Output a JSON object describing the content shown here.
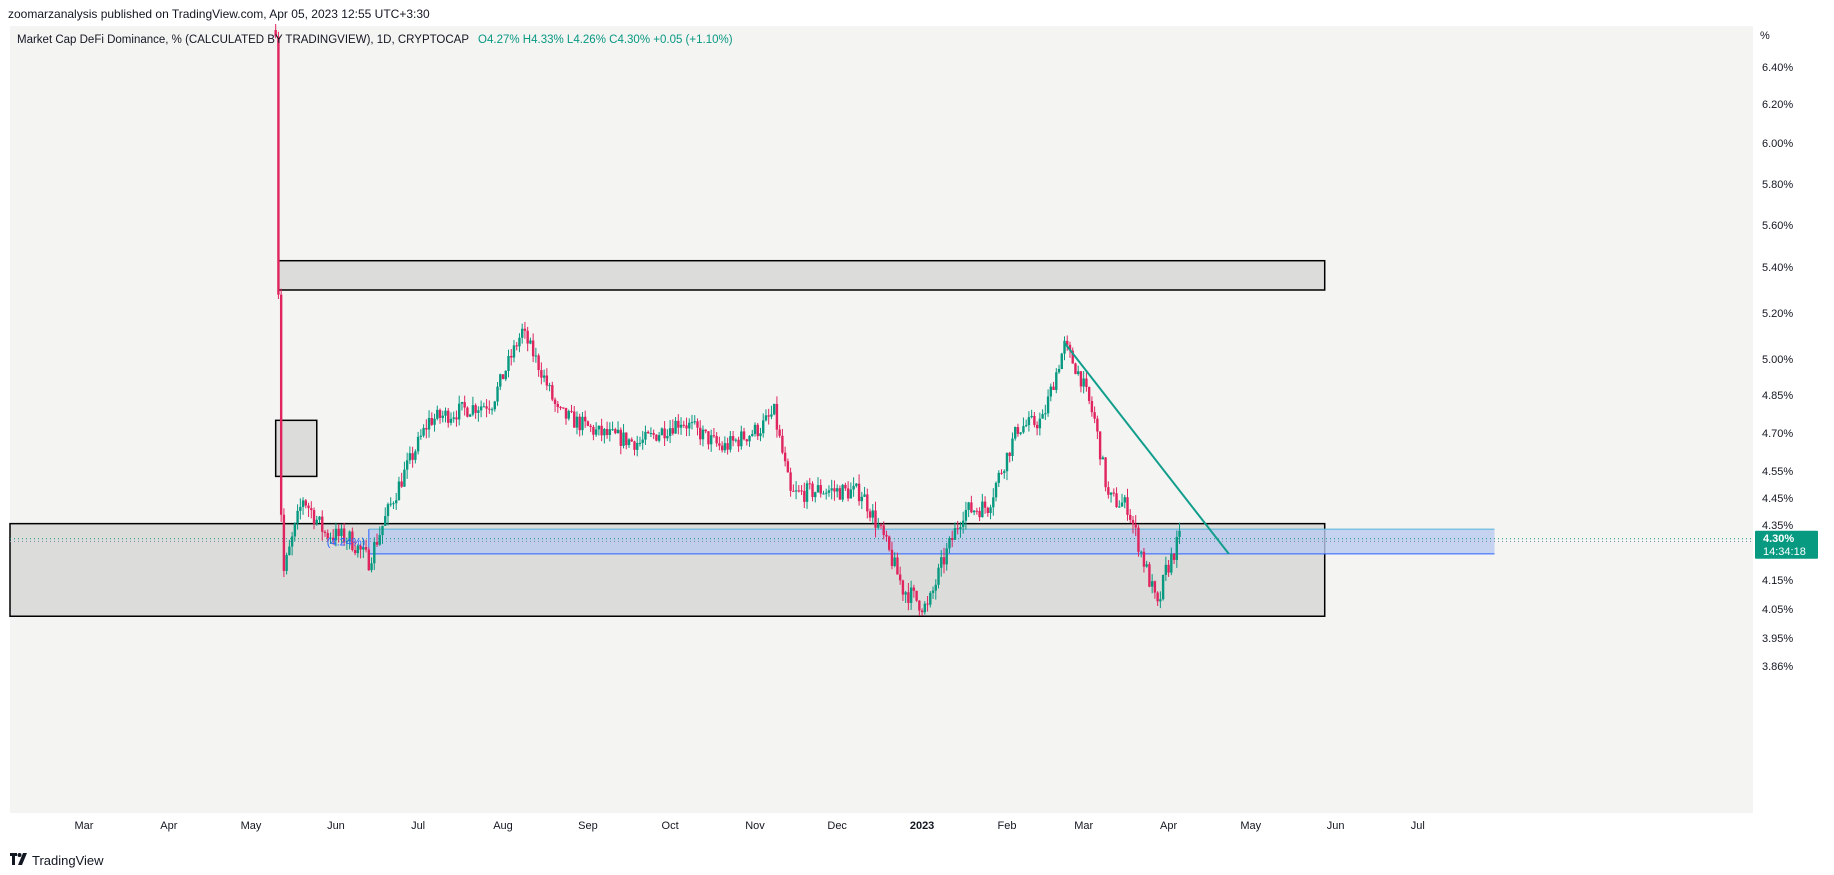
{
  "header": {
    "publish_text": "zoomarzanalysis published on TradingView.com, Apr 05, 2023 12:55 UTC+3:30"
  },
  "legend": {
    "symbol_text": "Market Cap DeFi Dominance, % (CALCULATED BY TRADINGVIEW), 1D, CRYPTOCAP",
    "open": "O4.27%",
    "high": "H4.33%",
    "low": "L4.26%",
    "close": "C4.30%",
    "change": "+0.05 (+1.10%)"
  },
  "footer": {
    "brand": "TradingView",
    "logo_icon": "tradingview-logo-icon"
  },
  "colors": {
    "up": "#089981",
    "down": "#e0245e",
    "trendline": "#129e8c",
    "range_fill": "#b9c9ef",
    "range_border": "#56b4d9",
    "zone_fill": "#dcdcdb",
    "zone_border": "#000000",
    "price_label_bg": "#089981"
  },
  "chart_data": {
    "type": "candlestick",
    "title": "Market Cap DeFi Dominance, % (CALCULATED BY TRADINGVIEW), 1D, CRYPTOCAP",
    "y_unit": "%",
    "y_ticks": [
      "3.86%",
      "3.95%",
      "4.05%",
      "4.15%",
      "4.35%",
      "4.45%",
      "4.55%",
      "4.70%",
      "4.85%",
      "5.00%",
      "5.20%",
      "5.40%",
      "5.60%",
      "5.80%",
      "6.00%",
      "6.20%",
      "6.40%"
    ],
    "y_tick_values": [
      3.86,
      3.95,
      4.05,
      4.15,
      4.35,
      4.45,
      4.55,
      4.7,
      4.85,
      5.0,
      5.2,
      5.4,
      5.6,
      5.8,
      6.0,
      6.2,
      6.4
    ],
    "x_ticks": [
      "Mar",
      "Apr",
      "May",
      "Jun",
      "Jul",
      "Aug",
      "Sep",
      "Oct",
      "Nov",
      "Dec",
      "2023",
      "Feb",
      "Mar",
      "Apr",
      "May",
      "Jun",
      "Jul"
    ],
    "x_tick_dates": [
      "2022-03-01",
      "2022-04-01",
      "2022-05-01",
      "2022-06-01",
      "2022-07-01",
      "2022-08-01",
      "2022-09-01",
      "2022-10-01",
      "2022-11-01",
      "2022-12-01",
      "2023-01-01",
      "2023-02-01",
      "2023-03-01",
      "2023-04-01",
      "2023-05-01",
      "2023-06-01",
      "2023-07-01"
    ],
    "x_range": [
      "2022-02-02",
      "2023-07-31"
    ],
    "last_price": "4.30%",
    "countdown": "14:34:18",
    "range_label": "(4.24%)",
    "anchors": [
      {
        "date": "2022-05-10",
        "price": 6.6
      },
      {
        "date": "2022-05-11",
        "price": 5.3
      },
      {
        "date": "2022-05-12",
        "price": 4.4
      },
      {
        "date": "2022-05-13",
        "price": 4.18
      },
      {
        "date": "2022-05-20",
        "price": 4.45
      },
      {
        "date": "2022-05-28",
        "price": 4.32
      },
      {
        "date": "2022-06-06",
        "price": 4.3
      },
      {
        "date": "2022-06-13",
        "price": 4.22
      },
      {
        "date": "2022-06-22",
        "price": 4.45
      },
      {
        "date": "2022-07-05",
        "price": 4.75
      },
      {
        "date": "2022-07-20",
        "price": 4.8
      },
      {
        "date": "2022-07-28",
        "price": 4.82
      },
      {
        "date": "2022-08-08",
        "price": 5.12
      },
      {
        "date": "2022-08-15",
        "price": 4.95
      },
      {
        "date": "2022-08-21",
        "price": 4.78
      },
      {
        "date": "2022-09-05",
        "price": 4.7
      },
      {
        "date": "2022-09-20",
        "price": 4.66
      },
      {
        "date": "2022-10-05",
        "price": 4.75
      },
      {
        "date": "2022-10-20",
        "price": 4.64
      },
      {
        "date": "2022-11-03",
        "price": 4.72
      },
      {
        "date": "2022-11-08",
        "price": 4.78
      },
      {
        "date": "2022-11-14",
        "price": 4.46
      },
      {
        "date": "2022-11-25",
        "price": 4.48
      },
      {
        "date": "2022-12-10",
        "price": 4.47
      },
      {
        "date": "2022-12-18",
        "price": 4.3
      },
      {
        "date": "2022-12-25",
        "price": 4.12
      },
      {
        "date": "2023-01-03",
        "price": 4.05
      },
      {
        "date": "2023-01-08",
        "price": 4.2
      },
      {
        "date": "2023-01-16",
        "price": 4.4
      },
      {
        "date": "2023-01-25",
        "price": 4.42
      },
      {
        "date": "2023-02-05",
        "price": 4.72
      },
      {
        "date": "2023-02-14",
        "price": 4.75
      },
      {
        "date": "2023-02-22",
        "price": 5.06
      },
      {
        "date": "2023-02-28",
        "price": 4.92
      },
      {
        "date": "2023-03-05",
        "price": 4.75
      },
      {
        "date": "2023-03-10",
        "price": 4.45
      },
      {
        "date": "2023-03-17",
        "price": 4.42
      },
      {
        "date": "2023-03-22",
        "price": 4.25
      },
      {
        "date": "2023-03-28",
        "price": 4.05
      },
      {
        "date": "2023-03-31",
        "price": 4.18
      },
      {
        "date": "2023-04-05",
        "price": 4.3
      }
    ],
    "zones": [
      {
        "name": "upper-supply-zone",
        "from": "2022-05-11",
        "to": "2023-05-28",
        "price_top": 5.43,
        "price_bottom": 5.3
      },
      {
        "name": "small-zone",
        "from": "2022-05-10",
        "to": "2022-05-25",
        "price_top": 4.75,
        "price_bottom": 4.53
      },
      {
        "name": "lower-demand-zone",
        "from": "2022-02-02",
        "to": "2023-05-28",
        "price_top": 4.355,
        "price_bottom": 4.025
      }
    ],
    "range_band": {
      "from": "2022-06-13",
      "to": "2023-07-29",
      "price_top": 4.335,
      "price_bottom": 4.245
    },
    "trendline": {
      "from_date": "2023-02-22",
      "from_price": 5.07,
      "to_date": "2023-04-23",
      "to_price": 4.245
    }
  }
}
